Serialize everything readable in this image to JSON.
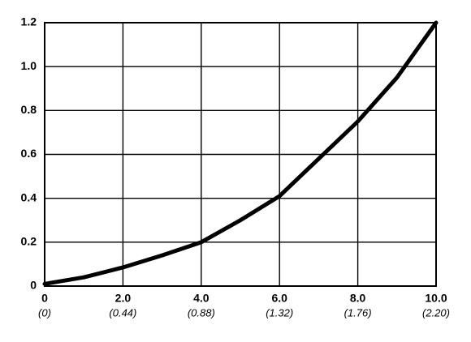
{
  "chart_data": {
    "type": "line",
    "x": [
      0,
      1,
      2,
      3,
      4,
      5,
      6,
      7,
      8,
      9,
      10
    ],
    "series": [
      {
        "color": "#000000",
        "values": [
          0.01,
          0.04,
          0.085,
          0.14,
          0.2,
          0.3,
          0.41,
          0.58,
          0.75,
          0.95,
          1.2
        ]
      }
    ],
    "xlim": [
      0,
      10
    ],
    "xticks": [
      0,
      {
        "value": 2,
        "label": "2.0"
      },
      {
        "value": 4,
        "label": "4.0"
      },
      {
        "value": 6,
        "label": "6.0"
      },
      {
        "value": 8,
        "label": "8.0"
      },
      {
        "value": 10,
        "label": "10.0"
      }
    ],
    "xtick_sublabels": [
      "(0)",
      "(0.44)",
      "(0.88)",
      "(1.32)",
      "(1.76)",
      "(2.20)"
    ],
    "ylim": [
      0,
      1.2
    ],
    "yticks": [
      0,
      0.2,
      0.4,
      0.6,
      0.8,
      {
        "value": 1,
        "label": "1.0"
      },
      1.2
    ],
    "grid": true
  }
}
